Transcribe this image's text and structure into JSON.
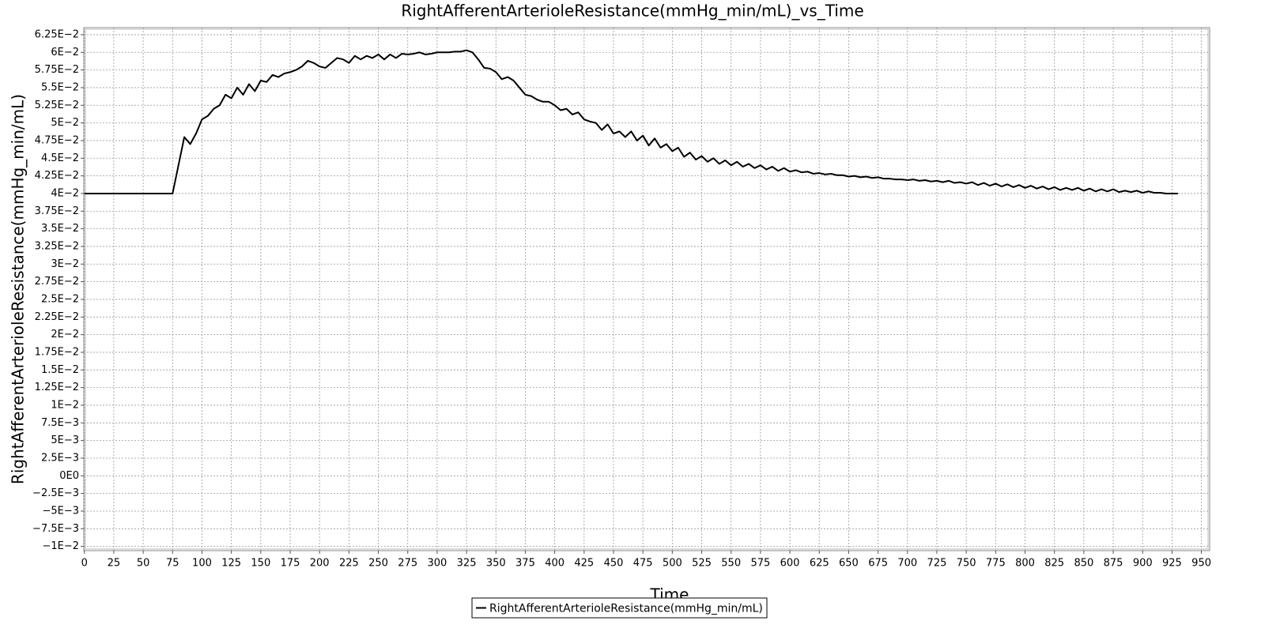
{
  "chart_data": {
    "type": "line",
    "title": "RightAfferentArterioleResistance(mmHg_min/mL)_vs_Time",
    "x_label": "Time",
    "y_label": "RightAfferentArterioleResistance(mmHg_min/mL)",
    "x": [
      0,
      5,
      10,
      15,
      20,
      25,
      30,
      35,
      40,
      45,
      50,
      55,
      60,
      65,
      70,
      75,
      80,
      85,
      90,
      95,
      100,
      105,
      110,
      115,
      120,
      125,
      130,
      135,
      140,
      145,
      150,
      155,
      160,
      165,
      170,
      175,
      180,
      185,
      190,
      195,
      200,
      205,
      210,
      215,
      220,
      225,
      230,
      235,
      240,
      245,
      250,
      255,
      260,
      265,
      270,
      275,
      280,
      285,
      290,
      295,
      300,
      305,
      310,
      315,
      320,
      325,
      330,
      335,
      340,
      345,
      350,
      355,
      360,
      365,
      370,
      375,
      380,
      385,
      390,
      395,
      400,
      405,
      410,
      415,
      420,
      425,
      430,
      435,
      440,
      445,
      450,
      455,
      460,
      465,
      470,
      475,
      480,
      485,
      490,
      495,
      500,
      505,
      510,
      515,
      520,
      525,
      530,
      535,
      540,
      545,
      550,
      555,
      560,
      565,
      570,
      575,
      580,
      585,
      590,
      595,
      600,
      605,
      610,
      615,
      620,
      625,
      630,
      635,
      640,
      645,
      650,
      655,
      660,
      665,
      670,
      675,
      680,
      685,
      690,
      695,
      700,
      705,
      710,
      715,
      720,
      725,
      730,
      735,
      740,
      745,
      750,
      755,
      760,
      765,
      770,
      775,
      780,
      785,
      790,
      795,
      800,
      805,
      810,
      815,
      820,
      825,
      830,
      835,
      840,
      845,
      850,
      855,
      860,
      865,
      870,
      875,
      880,
      885,
      890,
      895,
      900,
      905,
      910,
      915,
      920,
      925,
      930
    ],
    "series": [
      {
        "name": "RightAfferentArterioleResistance(mmHg_min/mL)",
        "color": "#000000",
        "values": [
          0.04,
          0.04,
          0.04,
          0.04,
          0.04,
          0.04,
          0.04,
          0.04,
          0.04,
          0.04,
          0.04,
          0.04,
          0.04,
          0.04,
          0.04,
          0.04,
          0.044,
          0.048,
          0.047,
          0.0485,
          0.0505,
          0.051,
          0.052,
          0.0525,
          0.054,
          0.0535,
          0.055,
          0.054,
          0.0555,
          0.0545,
          0.056,
          0.0558,
          0.0568,
          0.0565,
          0.057,
          0.0572,
          0.0575,
          0.058,
          0.0588,
          0.0585,
          0.058,
          0.0578,
          0.0585,
          0.0592,
          0.059,
          0.0585,
          0.0595,
          0.059,
          0.0595,
          0.0592,
          0.0597,
          0.059,
          0.0597,
          0.0592,
          0.0598,
          0.0597,
          0.0598,
          0.06,
          0.0597,
          0.0598,
          0.06,
          0.06,
          0.06,
          0.0601,
          0.0601,
          0.0603,
          0.06,
          0.059,
          0.0578,
          0.0577,
          0.0572,
          0.0562,
          0.0565,
          0.056,
          0.055,
          0.054,
          0.0538,
          0.0533,
          0.053,
          0.053,
          0.0525,
          0.0518,
          0.052,
          0.0512,
          0.0515,
          0.0505,
          0.0502,
          0.05,
          0.049,
          0.0498,
          0.0485,
          0.0488,
          0.048,
          0.0488,
          0.0475,
          0.0482,
          0.0468,
          0.0478,
          0.0465,
          0.047,
          0.046,
          0.0465,
          0.0452,
          0.0458,
          0.0448,
          0.0453,
          0.0445,
          0.045,
          0.0442,
          0.0447,
          0.044,
          0.0445,
          0.0438,
          0.0442,
          0.0436,
          0.044,
          0.0434,
          0.0438,
          0.0432,
          0.0436,
          0.0431,
          0.0433,
          0.043,
          0.0431,
          0.0428,
          0.0429,
          0.0427,
          0.0428,
          0.0426,
          0.0426,
          0.0424,
          0.0425,
          0.0423,
          0.0424,
          0.0422,
          0.0423,
          0.0421,
          0.0421,
          0.042,
          0.042,
          0.0419,
          0.042,
          0.0418,
          0.0419,
          0.0417,
          0.0418,
          0.0416,
          0.0418,
          0.0415,
          0.0416,
          0.0414,
          0.0416,
          0.0412,
          0.0415,
          0.0411,
          0.0414,
          0.041,
          0.0413,
          0.0409,
          0.0412,
          0.0408,
          0.0411,
          0.0407,
          0.041,
          0.0406,
          0.0409,
          0.0405,
          0.0408,
          0.0405,
          0.0408,
          0.0404,
          0.0407,
          0.0403,
          0.0406,
          0.0403,
          0.0406,
          0.0402,
          0.0404,
          0.0402,
          0.0404,
          0.0401,
          0.0403,
          0.0401,
          0.0401,
          0.04,
          0.04,
          0.04
        ]
      }
    ],
    "xlim": [
      -0.5,
      957
    ],
    "ylim": [
      -0.0106,
      0.0635
    ],
    "xticks": [
      0,
      25,
      50,
      75,
      100,
      125,
      150,
      175,
      200,
      225,
      250,
      275,
      300,
      325,
      350,
      375,
      400,
      425,
      450,
      475,
      500,
      525,
      550,
      575,
      600,
      625,
      650,
      675,
      700,
      725,
      750,
      775,
      800,
      825,
      850,
      875,
      900,
      925,
      950
    ],
    "yticks": [
      {
        "value": -0.01,
        "label": "−1E−2"
      },
      {
        "value": -0.0075,
        "label": "−7.5E−3"
      },
      {
        "value": -0.005,
        "label": "−5E−3"
      },
      {
        "value": -0.0025,
        "label": "−2.5E−3"
      },
      {
        "value": 0,
        "label": "0E0"
      },
      {
        "value": 0.0025,
        "label": "2.5E−3"
      },
      {
        "value": 0.005,
        "label": "5E−3"
      },
      {
        "value": 0.0075,
        "label": "7.5E−3"
      },
      {
        "value": 0.01,
        "label": "1E−2"
      },
      {
        "value": 0.0125,
        "label": "1.25E−2"
      },
      {
        "value": 0.015,
        "label": "1.5E−2"
      },
      {
        "value": 0.0175,
        "label": "1.75E−2"
      },
      {
        "value": 0.02,
        "label": "2E−2"
      },
      {
        "value": 0.0225,
        "label": "2.25E−2"
      },
      {
        "value": 0.025,
        "label": "2.5E−2"
      },
      {
        "value": 0.0275,
        "label": "2.75E−2"
      },
      {
        "value": 0.03,
        "label": "3E−2"
      },
      {
        "value": 0.0325,
        "label": "3.25E−2"
      },
      {
        "value": 0.035,
        "label": "3.5E−2"
      },
      {
        "value": 0.0375,
        "label": "3.75E−2"
      },
      {
        "value": 0.04,
        "label": "4E−2"
      },
      {
        "value": 0.0425,
        "label": "4.25E−2"
      },
      {
        "value": 0.045,
        "label": "4.5E−2"
      },
      {
        "value": 0.0475,
        "label": "4.75E−2"
      },
      {
        "value": 0.05,
        "label": "5E−2"
      },
      {
        "value": 0.0525,
        "label": "5.25E−2"
      },
      {
        "value": 0.055,
        "label": "5.5E−2"
      },
      {
        "value": 0.0575,
        "label": "5.75E−2"
      },
      {
        "value": 0.06,
        "label": "6E−2"
      },
      {
        "value": 0.0625,
        "label": "6.25E−2"
      }
    ],
    "grid": true,
    "legend": "bottom"
  }
}
